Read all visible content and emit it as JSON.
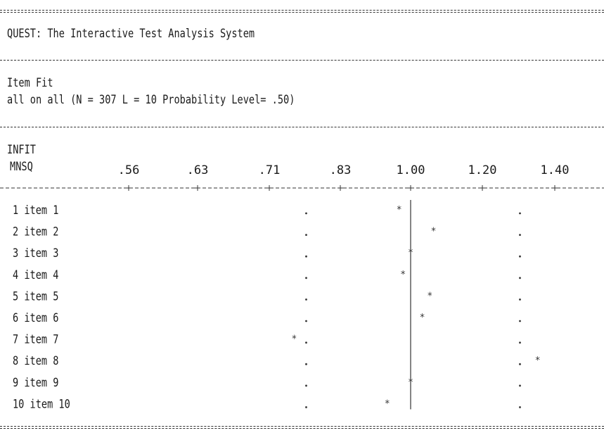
{
  "header": {
    "title": "QUEST: The Interactive Test Analysis System",
    "section": "Item Fit",
    "subtitle": "all on all (N = 307 L = 10 Probability Level= .50)"
  },
  "axis": {
    "label_line1": "INFIT",
    "label_line2": "MNSQ",
    "ticks": [
      ".56",
      ".63",
      ".71",
      ".83",
      "1.00",
      "1.20",
      "1.40"
    ]
  },
  "marker_symbol": "*",
  "chart_data": {
    "type": "scatter",
    "xlabel": "INFIT MNSQ",
    "ticks": [
      0.56,
      0.63,
      0.71,
      0.83,
      1.0,
      1.2,
      1.4
    ],
    "x_scale": "log",
    "reference_line": 1.0,
    "control_limits": [
      0.77,
      1.3
    ],
    "items": [
      {
        "label": " 1 item 1",
        "infit_mnsq": 0.97
      },
      {
        "label": " 2 item 2",
        "infit_mnsq": 1.06
      },
      {
        "label": " 3 item 3",
        "infit_mnsq": 1.0
      },
      {
        "label": " 4 item 4",
        "infit_mnsq": 0.98
      },
      {
        "label": " 5 item 5",
        "infit_mnsq": 1.05
      },
      {
        "label": " 6 item 6",
        "infit_mnsq": 1.03
      },
      {
        "label": " 7 item 7",
        "infit_mnsq": 0.75
      },
      {
        "label": " 8 item 8",
        "infit_mnsq": 1.35
      },
      {
        "label": " 9 item 9",
        "infit_mnsq": 1.0
      },
      {
        "label": "10 item 10",
        "infit_mnsq": 0.94
      }
    ]
  }
}
